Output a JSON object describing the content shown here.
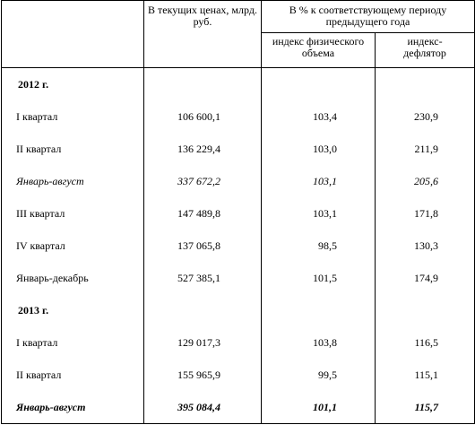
{
  "header": {
    "current_prices": "В текущих ценах, млрд. руб.",
    "percent_group": "В % к соответствующему периоду предыдущего года",
    "volume_index": "индекс физического объема",
    "deflator_index": "индекс-дефлятор"
  },
  "rows": [
    [
      "2012 г."
    ],
    [
      "I квартал",
      "106 600,1",
      "103,4",
      "230,9"
    ],
    [
      "II квартал",
      "136 229,4",
      "103,0",
      "211,9"
    ],
    [
      "Январь-август",
      "337 672,2",
      "103,1",
      "205,6"
    ],
    [
      "III квартал",
      "147 489,8",
      "103,1",
      "171,8"
    ],
    [
      "IV квартал",
      "137 065,8",
      "98,5",
      "130,3"
    ],
    [
      "Январь-декабрь",
      "527 385,1",
      "101,5",
      "174,9"
    ],
    [
      "2013 г."
    ],
    [
      "I квартал",
      "129 017,3",
      "103,8",
      "116,5"
    ],
    [
      "II квартал",
      "155 965,9",
      "99,5",
      "115,1"
    ],
    [
      "Январь-август",
      "395 084,4",
      "101,1",
      "115,7"
    ]
  ]
}
